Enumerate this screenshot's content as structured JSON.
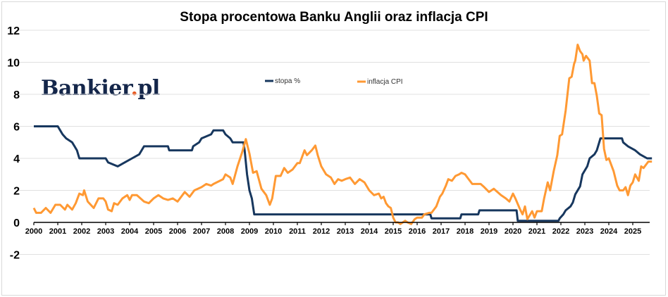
{
  "chart_data": {
    "type": "line",
    "title": "Stopa procentowa Banku Anglii oraz inflacja CPI",
    "xlabel": "",
    "ylabel": "",
    "ylim": [
      -2,
      12
    ],
    "xlim": [
      2000,
      2025.8
    ],
    "grid": true,
    "legend_position": "top-center",
    "yticks": [
      "12",
      "10",
      "8",
      "6",
      "4",
      "2",
      "0",
      "-2"
    ],
    "ytick_values": [
      12,
      10,
      8,
      6,
      4,
      2,
      0,
      -2
    ],
    "xticks": [
      "2000",
      "2001",
      "2002",
      "2003",
      "2004",
      "2005",
      "2006",
      "2007",
      "2008",
      "2009",
      "2010",
      "2011",
      "2012",
      "2013",
      "2014",
      "2015",
      "2016",
      "2017",
      "2018",
      "2019",
      "2020",
      "2021",
      "2022",
      "2023",
      "2024",
      "2025"
    ],
    "series": [
      {
        "name": "stopa %",
        "color": "#17375e",
        "points": [
          [
            2000.0,
            6.0
          ],
          [
            2001.0,
            6.0
          ],
          [
            2001.1,
            5.75
          ],
          [
            2001.2,
            5.5
          ],
          [
            2001.35,
            5.25
          ],
          [
            2001.6,
            5.0
          ],
          [
            2001.7,
            4.75
          ],
          [
            2001.8,
            4.5
          ],
          [
            2001.9,
            4.0
          ],
          [
            2003.0,
            4.0
          ],
          [
            2003.1,
            3.75
          ],
          [
            2003.5,
            3.5
          ],
          [
            2003.8,
            3.75
          ],
          [
            2004.1,
            4.0
          ],
          [
            2004.4,
            4.25
          ],
          [
            2004.5,
            4.5
          ],
          [
            2004.6,
            4.75
          ],
          [
            2005.6,
            4.75
          ],
          [
            2005.65,
            4.5
          ],
          [
            2006.6,
            4.5
          ],
          [
            2006.65,
            4.75
          ],
          [
            2006.9,
            5.0
          ],
          [
            2007.0,
            5.25
          ],
          [
            2007.4,
            5.5
          ],
          [
            2007.5,
            5.75
          ],
          [
            2007.9,
            5.75
          ],
          [
            2008.0,
            5.5
          ],
          [
            2008.2,
            5.25
          ],
          [
            2008.3,
            5.0
          ],
          [
            2008.75,
            5.0
          ],
          [
            2008.8,
            4.5
          ],
          [
            2008.9,
            3.0
          ],
          [
            2009.0,
            2.0
          ],
          [
            2009.1,
            1.5
          ],
          [
            2009.2,
            0.5
          ],
          [
            2016.55,
            0.5
          ],
          [
            2016.6,
            0.25
          ],
          [
            2017.8,
            0.25
          ],
          [
            2017.85,
            0.5
          ],
          [
            2018.55,
            0.5
          ],
          [
            2018.6,
            0.75
          ],
          [
            2020.15,
            0.75
          ],
          [
            2020.2,
            0.1
          ],
          [
            2021.9,
            0.1
          ],
          [
            2021.95,
            0.25
          ],
          [
            2022.1,
            0.5
          ],
          [
            2022.2,
            0.75
          ],
          [
            2022.4,
            1.0
          ],
          [
            2022.5,
            1.25
          ],
          [
            2022.6,
            1.75
          ],
          [
            2022.8,
            2.25
          ],
          [
            2022.9,
            3.0
          ],
          [
            2023.1,
            3.5
          ],
          [
            2023.2,
            4.0
          ],
          [
            2023.4,
            4.25
          ],
          [
            2023.5,
            4.5
          ],
          [
            2023.6,
            5.0
          ],
          [
            2023.65,
            5.25
          ],
          [
            2024.55,
            5.25
          ],
          [
            2024.6,
            5.0
          ],
          [
            2024.8,
            4.75
          ],
          [
            2025.1,
            4.5
          ],
          [
            2025.3,
            4.25
          ],
          [
            2025.6,
            4.0
          ],
          [
            2025.8,
            4.0
          ]
        ]
      },
      {
        "name": "inflacja CPI",
        "color": "#ff9933",
        "points": [
          [
            2000.0,
            0.9
          ],
          [
            2000.1,
            0.6
          ],
          [
            2000.3,
            0.6
          ],
          [
            2000.5,
            0.9
          ],
          [
            2000.7,
            0.6
          ],
          [
            2000.9,
            1.1
          ],
          [
            2001.1,
            1.1
          ],
          [
            2001.3,
            0.8
          ],
          [
            2001.4,
            1.1
          ],
          [
            2001.6,
            0.8
          ],
          [
            2001.75,
            1.2
          ],
          [
            2001.9,
            1.8
          ],
          [
            2002.05,
            1.7
          ],
          [
            2002.1,
            2.0
          ],
          [
            2002.25,
            1.3
          ],
          [
            2002.5,
            0.9
          ],
          [
            2002.7,
            1.5
          ],
          [
            2002.9,
            1.5
          ],
          [
            2003.0,
            1.3
          ],
          [
            2003.1,
            0.8
          ],
          [
            2003.25,
            0.7
          ],
          [
            2003.35,
            1.2
          ],
          [
            2003.5,
            1.1
          ],
          [
            2003.7,
            1.5
          ],
          [
            2003.9,
            1.7
          ],
          [
            2004.0,
            1.4
          ],
          [
            2004.1,
            1.7
          ],
          [
            2004.3,
            1.7
          ],
          [
            2004.6,
            1.3
          ],
          [
            2004.8,
            1.2
          ],
          [
            2005.0,
            1.5
          ],
          [
            2005.2,
            1.7
          ],
          [
            2005.4,
            1.5
          ],
          [
            2005.6,
            1.4
          ],
          [
            2005.8,
            1.5
          ],
          [
            2006.0,
            1.3
          ],
          [
            2006.3,
            1.9
          ],
          [
            2006.5,
            1.6
          ],
          [
            2006.7,
            2.0
          ],
          [
            2007.0,
            2.2
          ],
          [
            2007.2,
            2.4
          ],
          [
            2007.4,
            2.3
          ],
          [
            2007.5,
            2.4
          ],
          [
            2007.9,
            2.7
          ],
          [
            2008.0,
            3.0
          ],
          [
            2008.2,
            2.8
          ],
          [
            2008.3,
            2.4
          ],
          [
            2008.5,
            3.5
          ],
          [
            2008.7,
            4.4
          ],
          [
            2008.85,
            5.2
          ],
          [
            2009.0,
            4.3
          ],
          [
            2009.15,
            3.1
          ],
          [
            2009.3,
            3.2
          ],
          [
            2009.5,
            2.1
          ],
          [
            2009.7,
            1.7
          ],
          [
            2009.85,
            1.1
          ],
          [
            2009.95,
            1.5
          ],
          [
            2010.1,
            2.9
          ],
          [
            2010.3,
            2.9
          ],
          [
            2010.45,
            3.4
          ],
          [
            2010.6,
            3.1
          ],
          [
            2010.8,
            3.3
          ],
          [
            2011.0,
            3.7
          ],
          [
            2011.1,
            3.7
          ],
          [
            2011.3,
            4.5
          ],
          [
            2011.4,
            4.2
          ],
          [
            2011.6,
            4.5
          ],
          [
            2011.75,
            4.8
          ],
          [
            2011.85,
            4.2
          ],
          [
            2012.0,
            3.5
          ],
          [
            2012.2,
            3.0
          ],
          [
            2012.4,
            2.8
          ],
          [
            2012.55,
            2.4
          ],
          [
            2012.7,
            2.7
          ],
          [
            2012.85,
            2.6
          ],
          [
            2013.0,
            2.7
          ],
          [
            2013.2,
            2.8
          ],
          [
            2013.4,
            2.4
          ],
          [
            2013.6,
            2.7
          ],
          [
            2013.8,
            2.5
          ],
          [
            2014.0,
            2.0
          ],
          [
            2014.2,
            1.7
          ],
          [
            2014.4,
            1.8
          ],
          [
            2014.5,
            1.5
          ],
          [
            2014.6,
            1.6
          ],
          [
            2014.7,
            1.2
          ],
          [
            2014.8,
            1.0
          ],
          [
            2014.9,
            0.9
          ],
          [
            2015.0,
            0.3
          ],
          [
            2015.1,
            0.0
          ],
          [
            2015.2,
            0.0
          ],
          [
            2015.3,
            -0.1
          ],
          [
            2015.5,
            0.1
          ],
          [
            2015.6,
            0.0
          ],
          [
            2015.75,
            -0.1
          ],
          [
            2015.9,
            0.2
          ],
          [
            2016.0,
            0.3
          ],
          [
            2016.2,
            0.3
          ],
          [
            2016.3,
            0.5
          ],
          [
            2016.5,
            0.6
          ],
          [
            2016.6,
            0.6
          ],
          [
            2016.8,
            1.0
          ],
          [
            2016.95,
            1.6
          ],
          [
            2017.05,
            1.8
          ],
          [
            2017.2,
            2.3
          ],
          [
            2017.3,
            2.7
          ],
          [
            2017.45,
            2.6
          ],
          [
            2017.6,
            2.9
          ],
          [
            2017.75,
            3.0
          ],
          [
            2017.85,
            3.1
          ],
          [
            2018.0,
            3.0
          ],
          [
            2018.15,
            2.7
          ],
          [
            2018.3,
            2.4
          ],
          [
            2018.5,
            2.4
          ],
          [
            2018.65,
            2.4
          ],
          [
            2018.8,
            2.2
          ],
          [
            2019.0,
            1.9
          ],
          [
            2019.2,
            2.1
          ],
          [
            2019.35,
            1.9
          ],
          [
            2019.5,
            1.7
          ],
          [
            2019.7,
            1.5
          ],
          [
            2019.85,
            1.3
          ],
          [
            2020.0,
            1.8
          ],
          [
            2020.1,
            1.5
          ],
          [
            2020.3,
            0.8
          ],
          [
            2020.4,
            0.5
          ],
          [
            2020.5,
            1.0
          ],
          [
            2020.6,
            0.2
          ],
          [
            2020.8,
            0.7
          ],
          [
            2020.9,
            0.3
          ],
          [
            2021.0,
            0.7
          ],
          [
            2021.2,
            0.7
          ],
          [
            2021.3,
            1.5
          ],
          [
            2021.45,
            2.5
          ],
          [
            2021.55,
            2.0
          ],
          [
            2021.7,
            3.2
          ],
          [
            2021.85,
            4.2
          ],
          [
            2021.95,
            5.4
          ],
          [
            2022.05,
            5.5
          ],
          [
            2022.2,
            7.0
          ],
          [
            2022.35,
            9.0
          ],
          [
            2022.45,
            9.1
          ],
          [
            2022.55,
            9.9
          ],
          [
            2022.6,
            10.1
          ],
          [
            2022.7,
            11.1
          ],
          [
            2022.8,
            10.7
          ],
          [
            2022.9,
            10.5
          ],
          [
            2022.95,
            10.1
          ],
          [
            2023.05,
            10.4
          ],
          [
            2023.2,
            10.1
          ],
          [
            2023.3,
            8.7
          ],
          [
            2023.4,
            8.7
          ],
          [
            2023.5,
            7.9
          ],
          [
            2023.6,
            6.8
          ],
          [
            2023.7,
            6.7
          ],
          [
            2023.8,
            4.6
          ],
          [
            2023.9,
            3.9
          ],
          [
            2024.0,
            4.0
          ],
          [
            2024.2,
            3.2
          ],
          [
            2024.35,
            2.3
          ],
          [
            2024.45,
            2.0
          ],
          [
            2024.6,
            2.0
          ],
          [
            2024.7,
            2.2
          ],
          [
            2024.8,
            1.7
          ],
          [
            2024.9,
            2.3
          ],
          [
            2025.0,
            2.5
          ],
          [
            2025.1,
            3.0
          ],
          [
            2025.25,
            2.6
          ],
          [
            2025.35,
            3.5
          ],
          [
            2025.45,
            3.4
          ],
          [
            2025.55,
            3.6
          ],
          [
            2025.65,
            3.8
          ],
          [
            2025.8,
            3.8
          ]
        ]
      }
    ]
  },
  "logo": {
    "text_main": "Bankier",
    "text_dot": ".",
    "text_tail": "pl",
    "dot_color": "#e8571e"
  },
  "colors": {
    "axis": "#000000",
    "grid": "#e0e0e0"
  }
}
